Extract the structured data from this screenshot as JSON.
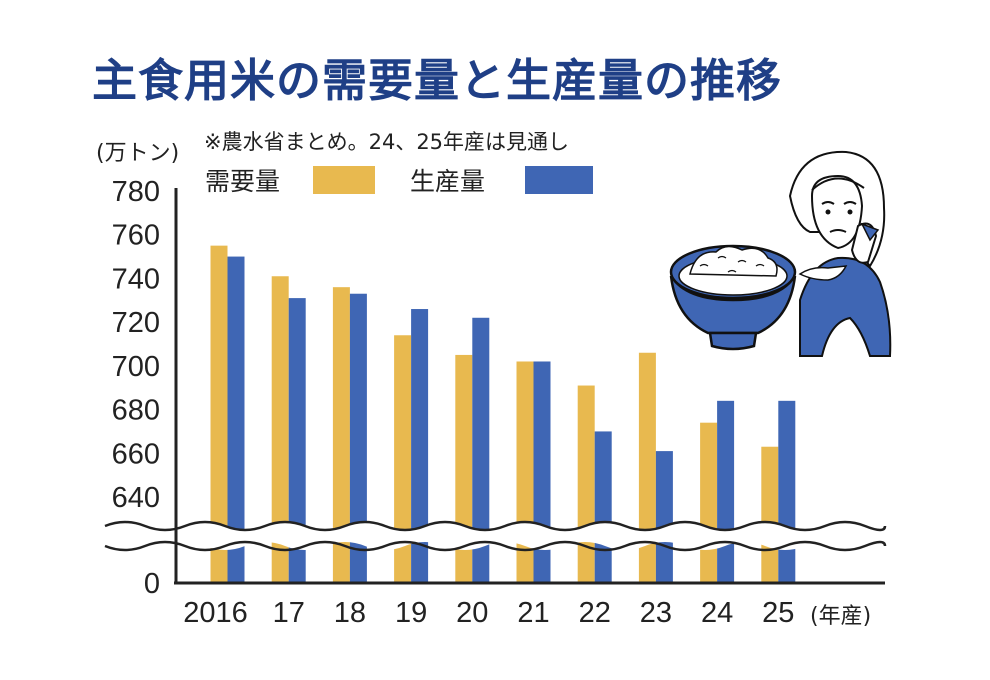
{
  "title": "主食用米の需要量と生産量の推移",
  "note": "※農水省まとめ。24、25年産は見通し",
  "colors": {
    "title": "#1f3f86",
    "demand": "#e8b94f",
    "production": "#3f66b4"
  },
  "icons": [
    "rice-bowl-icon",
    "worried-woman-illustration"
  ],
  "chart_data": {
    "type": "bar",
    "y_unit": "(万トン)",
    "x_unit": "(年産)",
    "categories": [
      "2016",
      "17",
      "18",
      "19",
      "20",
      "21",
      "22",
      "23",
      "24",
      "25"
    ],
    "series": [
      {
        "name": "需要量",
        "values": [
          755,
          741,
          736,
          714,
          705,
          702,
          691,
          706,
          674,
          663
        ]
      },
      {
        "name": "生産量",
        "values": [
          750,
          731,
          733,
          726,
          722,
          702,
          670,
          661,
          684,
          684
        ]
      }
    ],
    "ylim": [
      640,
      780
    ],
    "yticks": [
      "780",
      "760",
      "740",
      "720",
      "700",
      "680",
      "660",
      "640",
      "0"
    ],
    "axis_break": true,
    "legend_position": "top-left"
  }
}
